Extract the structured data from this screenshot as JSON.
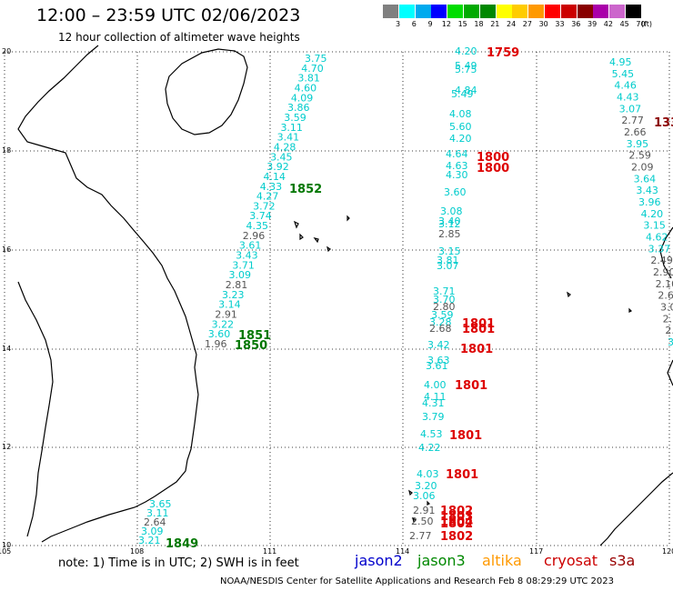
{
  "header": {
    "title": "12:00 – 23:59 UTC 02/06/2023",
    "subtitle": "12 hour collection of altimeter wave heights"
  },
  "colorbar": {
    "unit": "(ft)",
    "bins": [
      {
        "label": "3",
        "color": "#808080"
      },
      {
        "label": "6",
        "color": "#00ffff"
      },
      {
        "label": "9",
        "color": "#00aaee"
      },
      {
        "label": "12",
        "color": "#0000ff"
      },
      {
        "label": "15",
        "color": "#00dd00"
      },
      {
        "label": "18",
        "color": "#00aa00"
      },
      {
        "label": "21",
        "color": "#008800"
      },
      {
        "label": "24",
        "color": "#ffff00"
      },
      {
        "label": "27",
        "color": "#ffcc00"
      },
      {
        "label": "30",
        "color": "#ff9900"
      },
      {
        "label": "33",
        "color": "#ff0000"
      },
      {
        "label": "36",
        "color": "#cc0000"
      },
      {
        "label": "39",
        "color": "#880000"
      },
      {
        "label": "42",
        "color": "#aa00aa"
      },
      {
        "label": "45",
        "color": "#cc66cc"
      },
      {
        "label": "70",
        "color": "#000000"
      }
    ]
  },
  "axes": {
    "lat_ticks": [
      "20",
      "18",
      "16",
      "14",
      "12",
      "10"
    ],
    "lon_ticks": [
      "105",
      "108",
      "111",
      "114",
      "117",
      "120"
    ]
  },
  "colors": {
    "cyan": "#00cccc",
    "gray": "#555555",
    "green": "#007700",
    "red": "#dd0000",
    "darkred": "#8b0000",
    "coast": "#000000",
    "grid": "#000000"
  },
  "track1": {
    "values": [
      "3.75",
      "4.70",
      "3.81",
      "4.60",
      "4.09",
      "3.86",
      "3.59",
      "3.11",
      "3.41",
      "4.28",
      "3.45",
      "3.92",
      "4.14",
      "4.33",
      "4.27",
      "3.72",
      "3.74",
      "4.35",
      "2.96",
      "3.61",
      "3.43",
      "3.71",
      "3.09",
      "2.81",
      "3.23",
      "3.14",
      "2.91",
      "3.22",
      "3.60",
      "1.96"
    ],
    "gray_indices": [
      18,
      23,
      26,
      29
    ],
    "times": [
      "1852",
      "1851",
      "1850"
    ]
  },
  "track2": {
    "values": [
      "4.20",
      "5.49",
      "5.75",
      "4.84",
      "5.49",
      "4.08",
      "5.60",
      "4.20",
      "4.64",
      "4.63",
      "4.30",
      "3.60",
      "3.08",
      "3.40",
      "3.12",
      "2.85",
      "3.15",
      "3.81",
      "3.07",
      "3.71",
      "3.70",
      "2.80",
      "3.59",
      "3.28",
      "2.68",
      "3.42",
      "3.63",
      "3.61",
      "4.00",
      "4.11",
      "4.31",
      "3.79",
      "4.53",
      "4.22",
      "4.03",
      "3.20",
      "3.06",
      "2.91",
      "2.50",
      "2.77"
    ],
    "gray_indices": [
      15,
      21,
      24,
      37,
      38,
      39
    ],
    "times": [
      "1759",
      "1800",
      "1800",
      "1801",
      "1801",
      "1801",
      "1801",
      "1801",
      "1801",
      "1802",
      "1803",
      "1804",
      "1802",
      "1802"
    ]
  },
  "track3": {
    "values": [
      "4.95",
      "5.45",
      "4.46",
      "4.43",
      "3.07",
      "2.77",
      "2.66",
      "3.95",
      "2.59",
      "2.09",
      "3.64",
      "3.43",
      "3.96",
      "4.20",
      "3.15",
      "4.62",
      "3.37",
      "2.49",
      "2.90",
      "2.10",
      "2.6",
      "3.0",
      "2.",
      "2.",
      "3."
    ],
    "gray_indices": [
      5,
      6,
      8,
      9,
      17,
      18,
      19,
      20,
      21,
      22,
      23
    ],
    "time": "133"
  },
  "track4": {
    "values": [
      "3.65",
      "3.11",
      "2.64",
      "3.09",
      "3.21"
    ],
    "gray_indices": [
      2
    ],
    "time": "1849"
  },
  "footer": {
    "note": "note:  1) Time is in UTC;  2) SWH is in feet",
    "legend": [
      {
        "label": "jason2",
        "color": "#0000cc"
      },
      {
        "label": "jason3",
        "color": "#008800"
      },
      {
        "label": "altika",
        "color": "#ff9900"
      },
      {
        "label": "cryosat",
        "color": "#cc0000"
      },
      {
        "label": "s3a",
        "color": "#990000"
      }
    ],
    "credit": "NOAA/NESDIS Center for Satellite Applications and Research    Feb  8 08:29:29 UTC 2023"
  }
}
